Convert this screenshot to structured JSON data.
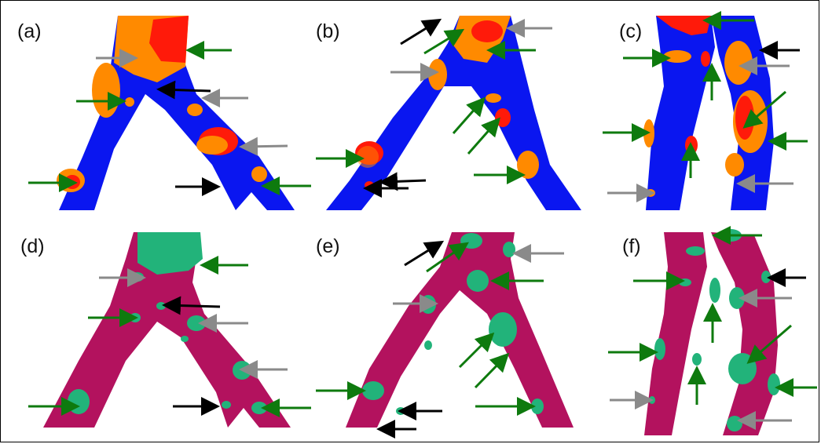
{
  "panels": [
    {
      "id": "a",
      "label": "(a)"
    },
    {
      "id": "b",
      "label": "(b)"
    },
    {
      "id": "c",
      "label": "(c)"
    },
    {
      "id": "d",
      "label": "(d)"
    },
    {
      "id": "e",
      "label": "(e)"
    },
    {
      "id": "f",
      "label": "(f)"
    }
  ],
  "colors": {
    "vessel_blue": "#0a16f0",
    "orange": "#ff8a00",
    "red": "#ff1a0a",
    "magenta": "#b3125e",
    "green_blob": "#22b37a",
    "arrow_green": "#0e7a0e",
    "arrow_gray": "#8a8a8a",
    "arrow_black": "#000000"
  }
}
